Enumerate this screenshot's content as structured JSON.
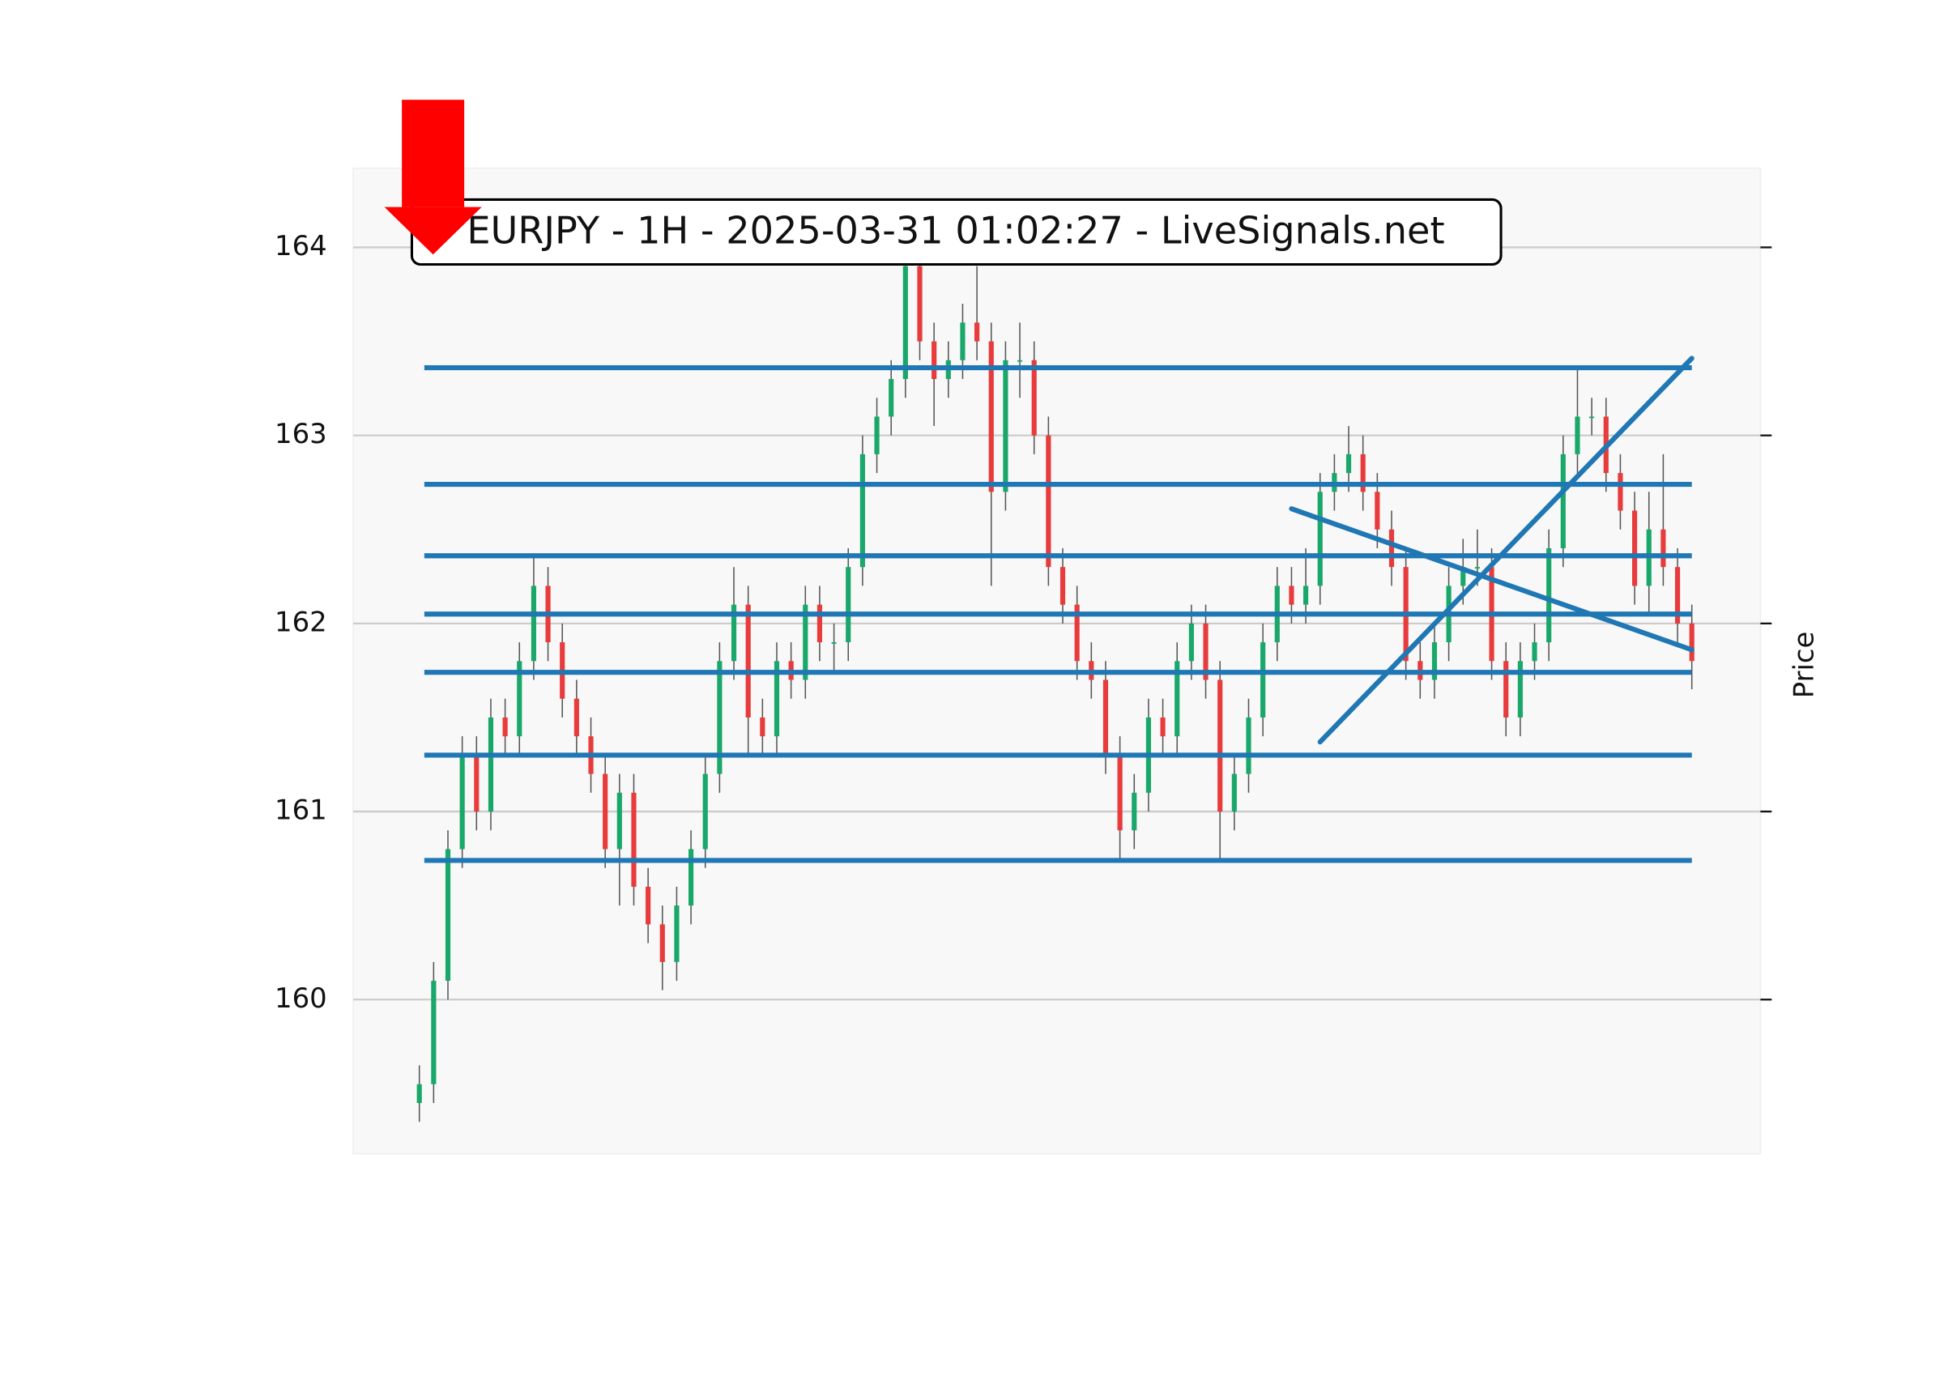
{
  "chart_data": {
    "type": "candlestick",
    "title": "EURJPY - 1H - 2025-03-31 01:02:27 - LiveSignals.net",
    "y_label": "Price",
    "ylim": [
      159.18,
      164.42
    ],
    "yticks": [
      160,
      161,
      162,
      163,
      164
    ],
    "grid": true,
    "up_color": "#1aa86a",
    "down_color": "#e83b3b",
    "line_color": "#1f77b4",
    "open": [
      159.45,
      159.55,
      160.1,
      160.8,
      161.3,
      161.0,
      161.5,
      161.4,
      161.8,
      162.2,
      161.9,
      161.6,
      161.4,
      161.2,
      160.8,
      161.1,
      160.6,
      160.4,
      160.2,
      160.5,
      160.8,
      161.2,
      161.8,
      162.1,
      161.5,
      161.4,
      161.8,
      161.7,
      162.1,
      161.9,
      161.9,
      162.3,
      162.9,
      163.1,
      163.3,
      163.9,
      163.5,
      163.3,
      163.4,
      163.6,
      163.5,
      162.7,
      163.4,
      163.4,
      163.0,
      162.3,
      162.1,
      161.8,
      161.7,
      161.3,
      160.9,
      161.1,
      161.5,
      161.4,
      161.8,
      162.0,
      161.7,
      161.0,
      161.2,
      161.5,
      161.9,
      162.2,
      162.1,
      162.2,
      162.7,
      162.8,
      162.9,
      162.7,
      162.5,
      162.3,
      161.8,
      161.7,
      161.9,
      162.2,
      162.3,
      162.3,
      161.8,
      161.5,
      161.8,
      161.9,
      162.4,
      162.9,
      163.1,
      163.1,
      162.8,
      162.6,
      162.2,
      162.5,
      162.3,
      162.0
    ],
    "high": [
      159.65,
      160.2,
      160.9,
      161.4,
      161.4,
      161.6,
      161.6,
      161.9,
      162.35,
      162.3,
      162.0,
      161.7,
      161.5,
      161.3,
      161.2,
      161.2,
      160.7,
      160.5,
      160.6,
      160.9,
      161.3,
      161.9,
      162.3,
      162.2,
      161.6,
      161.9,
      161.9,
      162.2,
      162.2,
      162.0,
      162.4,
      163.0,
      163.2,
      163.4,
      164.0,
      164.0,
      163.6,
      163.5,
      163.7,
      163.9,
      163.6,
      163.5,
      163.6,
      163.5,
      163.1,
      162.4,
      162.2,
      161.9,
      161.8,
      161.4,
      161.2,
      161.6,
      161.6,
      161.9,
      162.1,
      162.1,
      161.8,
      161.3,
      161.6,
      162.0,
      162.3,
      162.3,
      162.4,
      162.8,
      162.9,
      163.05,
      163.0,
      162.8,
      162.6,
      162.4,
      161.9,
      162.0,
      162.3,
      162.45,
      162.5,
      162.4,
      161.9,
      161.9,
      162.0,
      162.5,
      163.0,
      163.35,
      163.2,
      163.2,
      162.9,
      162.7,
      162.7,
      162.9,
      162.4,
      162.1
    ],
    "low": [
      159.35,
      159.45,
      160.0,
      160.7,
      160.9,
      160.9,
      161.3,
      161.3,
      161.7,
      161.8,
      161.5,
      161.3,
      161.1,
      160.7,
      160.5,
      160.5,
      160.3,
      160.05,
      160.1,
      160.4,
      160.7,
      161.1,
      161.7,
      161.3,
      161.3,
      161.3,
      161.6,
      161.6,
      161.8,
      161.75,
      161.8,
      162.2,
      162.8,
      163.0,
      163.2,
      163.4,
      163.05,
      163.2,
      163.3,
      163.4,
      162.2,
      162.6,
      163.2,
      162.9,
      162.2,
      162.0,
      161.7,
      161.6,
      161.2,
      160.75,
      160.8,
      161.0,
      161.3,
      161.3,
      161.7,
      161.6,
      160.75,
      160.9,
      161.1,
      161.4,
      161.8,
      162.0,
      162.0,
      162.1,
      162.6,
      162.7,
      162.6,
      162.4,
      162.2,
      161.7,
      161.6,
      161.6,
      161.8,
      162.1,
      162.2,
      161.7,
      161.4,
      161.4,
      161.7,
      161.8,
      162.3,
      162.8,
      163.0,
      162.7,
      162.5,
      162.1,
      162.05,
      162.2,
      161.9,
      161.65
    ],
    "close": [
      159.55,
      160.1,
      160.8,
      161.3,
      161.0,
      161.5,
      161.4,
      161.8,
      162.2,
      161.9,
      161.6,
      161.4,
      161.2,
      160.8,
      161.1,
      160.6,
      160.4,
      160.2,
      160.5,
      160.8,
      161.2,
      161.8,
      162.1,
      161.5,
      161.4,
      161.8,
      161.7,
      162.1,
      161.9,
      161.9,
      162.3,
      162.9,
      163.1,
      163.3,
      163.9,
      163.5,
      163.3,
      163.4,
      163.6,
      163.5,
      162.7,
      163.4,
      163.4,
      163.0,
      162.3,
      162.1,
      161.8,
      161.7,
      161.3,
      160.9,
      161.1,
      161.5,
      161.4,
      161.8,
      162.0,
      161.7,
      161.0,
      161.2,
      161.5,
      161.9,
      162.2,
      162.1,
      162.2,
      162.7,
      162.8,
      162.9,
      162.7,
      162.5,
      162.3,
      161.8,
      161.7,
      161.9,
      162.2,
      162.3,
      162.3,
      161.8,
      161.5,
      161.8,
      161.9,
      162.4,
      162.9,
      163.1,
      163.1,
      162.8,
      162.6,
      162.2,
      162.5,
      162.3,
      162.0,
      161.8
    ],
    "levels": [
      163.36,
      162.74,
      162.36,
      162.05,
      161.74,
      161.3,
      160.74
    ],
    "trendlines": [
      {
        "x": [
          61,
          89
        ],
        "y": [
          162.61,
          161.86
        ]
      },
      {
        "x": [
          63,
          89
        ],
        "y": [
          161.37,
          163.41
        ]
      }
    ]
  }
}
